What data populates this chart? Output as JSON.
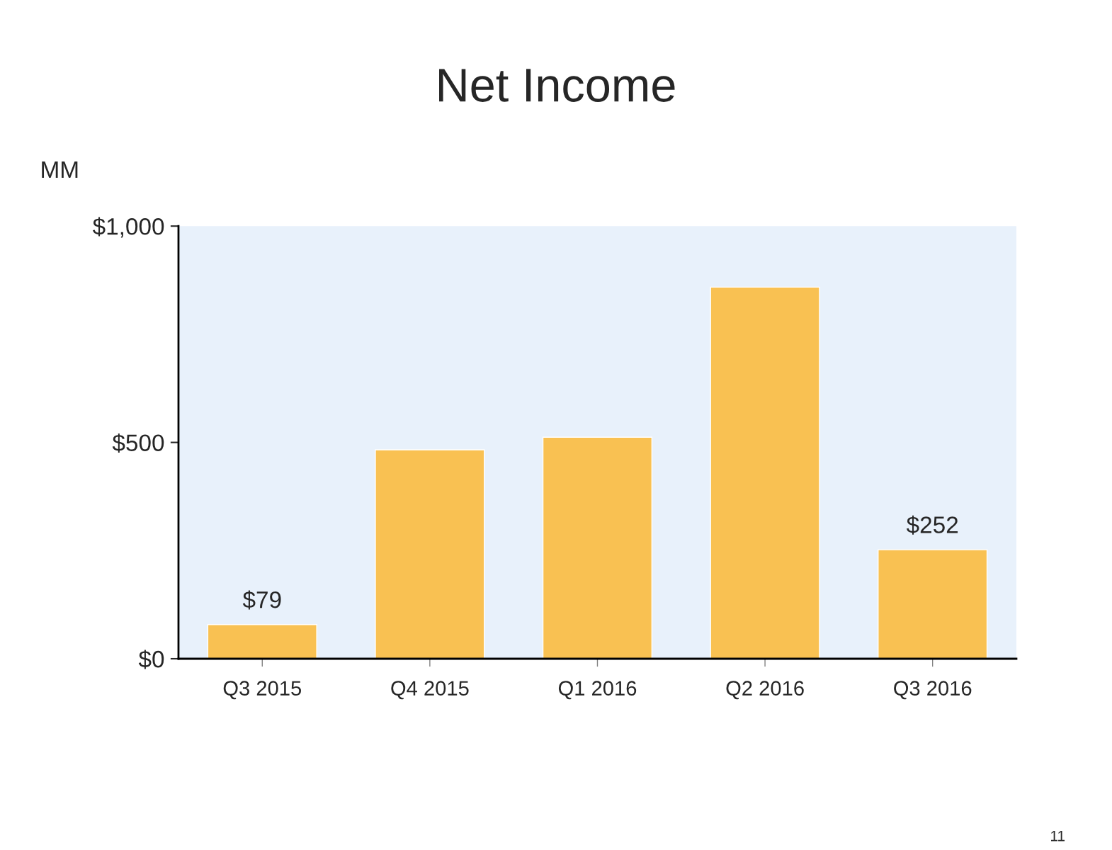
{
  "chart_data": {
    "type": "bar",
    "title": "Net Income",
    "ylabel": "MM",
    "categories": [
      "Q3 2015",
      "Q4 2015",
      "Q1 2016",
      "Q2 2016",
      "Q3 2016"
    ],
    "values": [
      79,
      483,
      512,
      859,
      252
    ],
    "value_labels": [
      "$79",
      null,
      null,
      null,
      "$252"
    ],
    "color": "#f9c152",
    "ylim": [
      0,
      1000
    ],
    "yticks": [
      {
        "value": 0,
        "label": "$0"
      },
      {
        "value": 500,
        "label": "$500"
      },
      {
        "value": 1000,
        "label": "$1,000"
      }
    ],
    "grid": false,
    "legend": false,
    "annotations": [
      "11"
    ]
  }
}
